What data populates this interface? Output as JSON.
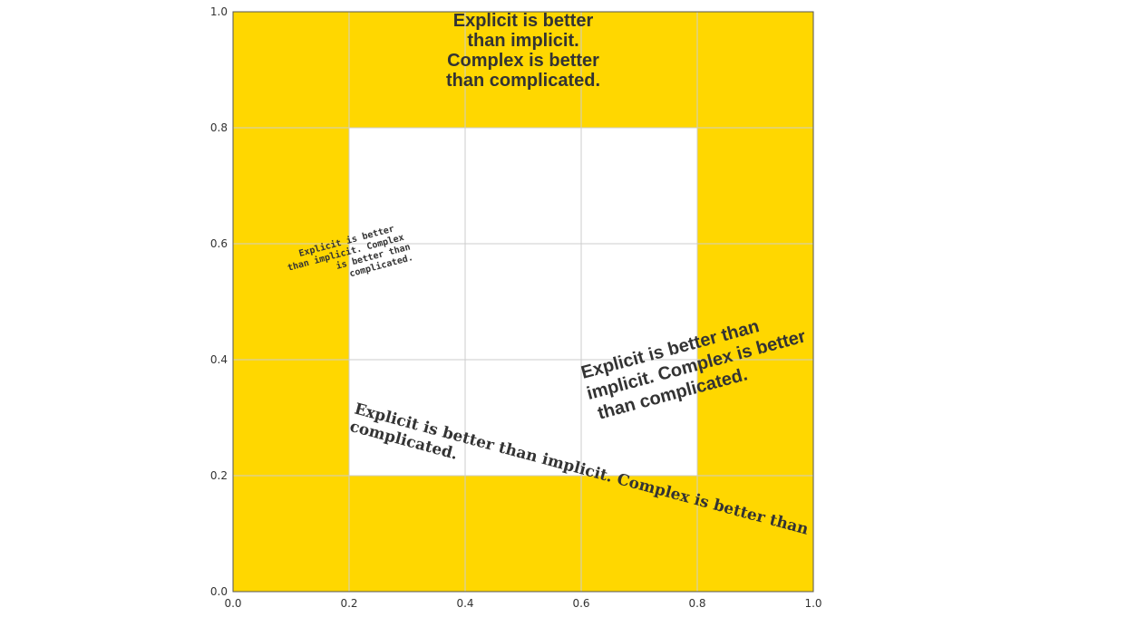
{
  "chart_data": {
    "type": "text-annotation",
    "xlim": [
      0,
      1
    ],
    "ylim": [
      0,
      1
    ],
    "xticks": [
      "0.0",
      "0.2",
      "0.4",
      "0.6",
      "0.8",
      "1.0"
    ],
    "yticks": [
      "0.0",
      "0.2",
      "0.4",
      "0.6",
      "0.8",
      "1.0"
    ],
    "grid": true,
    "colors": {
      "background": "#ffd700",
      "inner_rect": "#ffffff",
      "grid": "#cccccc",
      "spine": "#555555",
      "text": "#333333"
    },
    "inner_rect": {
      "x0": 0.2,
      "y0": 0.2,
      "x1": 0.8,
      "y1": 0.8
    },
    "annotations": [
      {
        "id": "top",
        "lines": [
          "Explicit is better",
          "than implicit.",
          "Complex is better",
          "than complicated."
        ],
        "x": 0.5,
        "y": 1.0,
        "rotation_deg": 0,
        "style": "bold-sans"
      },
      {
        "id": "left",
        "lines": [
          "Explicit is better",
          "than implicit. Complex",
          "is better than",
          "complicated."
        ],
        "x": 0.2,
        "y": 0.6,
        "rotation_deg": 15,
        "style": "mono"
      },
      {
        "id": "right",
        "lines": [
          "Explicit is better than",
          "implicit. Complex is better",
          "than complicated."
        ],
        "x": 0.6,
        "y": 0.4,
        "rotation_deg": 15,
        "style": "bold-sans-large"
      },
      {
        "id": "bottom",
        "lines": [
          "Explicit is better than implicit. Complex is better than",
          "complicated."
        ],
        "x": 0.2,
        "y": 0.3,
        "rotation_deg": -15,
        "style": "serif"
      }
    ]
  }
}
